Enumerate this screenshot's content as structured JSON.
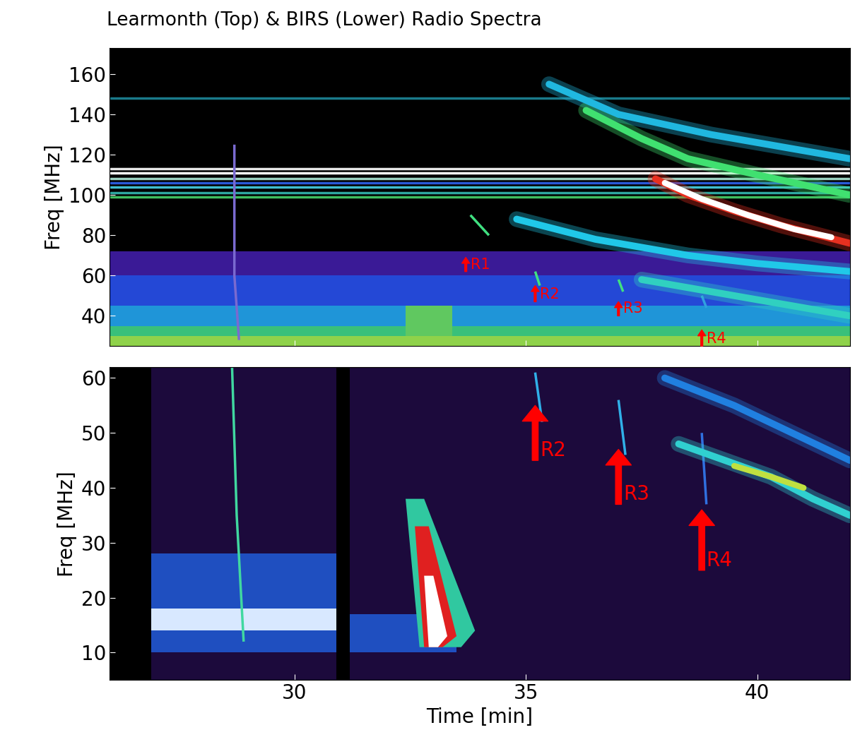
{
  "chart_data": [
    {
      "type": "spectrogram",
      "title": "Learmonth (Top) & BIRS (Lower) Radio Spectra",
      "ylabel": "Freq [MHz]",
      "color": "#000000",
      "xlim": [
        26,
        42
      ],
      "xticks": [
        30,
        35,
        40
      ],
      "ylim": [
        25,
        173
      ],
      "yticks": [
        40,
        60,
        80,
        100,
        120,
        140,
        160
      ],
      "tick_labels": "y",
      "bands": [
        {
          "t": [
            26,
            42
          ],
          "f": [
            25,
            30
          ],
          "color": "#8fd24a"
        },
        {
          "t": [
            26,
            42
          ],
          "f": [
            30,
            35
          ],
          "color": "#39c07a"
        },
        {
          "t": [
            26,
            42
          ],
          "f": [
            35,
            45
          ],
          "color": "#1f95d8"
        },
        {
          "t": [
            26,
            42
          ],
          "f": [
            45,
            60
          ],
          "color": "#2448d6"
        },
        {
          "t": [
            26,
            42
          ],
          "f": [
            60,
            72
          ],
          "color": "#3a1a96"
        }
      ],
      "traces": [
        {
          "t": [
            26,
            42
          ],
          "f": [
            99,
            99
          ],
          "color": "#3fbf60"
        },
        {
          "t": [
            26,
            42
          ],
          "f": [
            101,
            101
          ],
          "color": "#2ea8a0"
        },
        {
          "t": [
            26,
            42
          ],
          "f": [
            104,
            104
          ],
          "color": "#40c0d0"
        },
        {
          "t": [
            26,
            42
          ],
          "f": [
            106,
            106
          ],
          "color": "#2a5ad8"
        },
        {
          "t": [
            26,
            42
          ],
          "f": [
            108,
            108
          ],
          "color": "#9ad0c0"
        },
        {
          "t": [
            26,
            42
          ],
          "f": [
            111,
            111
          ],
          "color": "#ffffff"
        },
        {
          "t": [
            26,
            42
          ],
          "f": [
            113,
            113
          ],
          "color": "#e8e8e8"
        },
        {
          "t": [
            26,
            42
          ],
          "f": [
            148,
            148
          ],
          "color": "#1a7a8a"
        },
        {
          "t": [
            28.7,
            28.7,
            28.8
          ],
          "f": [
            125,
            60,
            28
          ],
          "color": "#7a6ad0"
        },
        {
          "t": [
            33.8,
            34.2
          ],
          "f": [
            90,
            80
          ],
          "color": "#40e080"
        },
        {
          "t": [
            35.2,
            35.3
          ],
          "f": [
            62,
            55
          ],
          "color": "#40e080"
        },
        {
          "t": [
            37.0,
            37.1
          ],
          "f": [
            58,
            52
          ],
          "color": "#40e080"
        },
        {
          "t": [
            38.8,
            38.9
          ],
          "f": [
            50,
            44
          ],
          "color": "#30a0e0"
        }
      ],
      "lanes": [
        {
          "t": [
            35.5,
            37,
            39,
            41,
            42
          ],
          "f": [
            155,
            140,
            130,
            122,
            118
          ],
          "color": "#20b8e0"
        },
        {
          "t": [
            36.3,
            37.5,
            38.5,
            40,
            42
          ],
          "f": [
            142,
            128,
            118,
            110,
            100
          ],
          "color": "#40e070"
        },
        {
          "t": [
            37.8,
            38.5,
            39.5,
            40.5,
            41.5,
            42
          ],
          "f": [
            108,
            100,
            92,
            85,
            79,
            76
          ],
          "color": "#e83020"
        },
        {
          "t": [
            34.8,
            36.5,
            38.5,
            40,
            42
          ],
          "f": [
            88,
            78,
            70,
            66,
            62
          ],
          "color": "#20c8e8"
        },
        {
          "t": [
            37.5,
            39,
            40.5,
            42
          ],
          "f": [
            58,
            52,
            46,
            40
          ],
          "color": "#30d0c0"
        }
      ],
      "cores": [
        {
          "t": [
            38.0,
            38.8,
            39.8,
            40.8,
            41.6
          ],
          "f": [
            106,
            98,
            90,
            83,
            79
          ],
          "color": "#ffffff"
        }
      ],
      "polygons": [
        {
          "t": [
            32.4,
            33.4,
            33.4,
            32.4
          ],
          "f": [
            30,
            30,
            45,
            45
          ],
          "color": "#60c860"
        }
      ],
      "annotations": [
        {
          "text": "R1",
          "t": 33.7,
          "f": [
            62,
            69
          ]
        },
        {
          "text": "R2",
          "t": 35.2,
          "f": [
            47,
            55
          ]
        },
        {
          "text": "R3",
          "t": 37.0,
          "f": [
            40,
            47
          ]
        },
        {
          "text": "R4",
          "t": 38.8,
          "f": [
            25,
            33
          ]
        }
      ]
    },
    {
      "type": "spectrogram",
      "ylabel": "Freq [MHz]",
      "xlabel": "Time [min]",
      "color": "#1c0a3c",
      "xlim": [
        26,
        42
      ],
      "xticks": [
        30,
        35,
        40
      ],
      "ylim": [
        5,
        62
      ],
      "yticks": [
        10,
        20,
        30,
        40,
        50,
        60
      ],
      "bands": [
        {
          "t": [
            26,
            26.9
          ],
          "f": [
            5,
            62
          ],
          "color": "#000000"
        },
        {
          "t": [
            26.9,
            30.9
          ],
          "f": [
            10,
            28
          ],
          "color": "#1f4fc0"
        },
        {
          "t": [
            26.9,
            30.9
          ],
          "f": [
            14,
            18
          ],
          "color": "#d8e8ff"
        },
        {
          "t": [
            30.9,
            31.2
          ],
          "f": [
            5,
            62
          ],
          "color": "#000000"
        },
        {
          "t": [
            31.2,
            33.5
          ],
          "f": [
            10,
            17
          ],
          "color": "#1f4fc0"
        }
      ],
      "traces": [
        {
          "t": [
            28.65,
            28.75,
            28.9
          ],
          "f": [
            62,
            35,
            12
          ],
          "color": "#40d8a0"
        },
        {
          "t": [
            35.2,
            35.35
          ],
          "f": [
            61,
            52
          ],
          "color": "#30b0e8"
        },
        {
          "t": [
            37.0,
            37.15
          ],
          "f": [
            56,
            46
          ],
          "color": "#30b0e8"
        },
        {
          "t": [
            38.8,
            38.9
          ],
          "f": [
            50,
            37
          ],
          "color": "#3070e0"
        }
      ],
      "lanes": [
        {
          "t": [
            38,
            39.5,
            41,
            42
          ],
          "f": [
            60,
            55,
            49,
            45
          ],
          "color": "#2080e0"
        },
        {
          "t": [
            38.3,
            39.3,
            40.3,
            41.2,
            42
          ],
          "f": [
            48,
            45,
            42,
            38,
            35
          ],
          "color": "#30d0d0"
        }
      ],
      "cores": [
        {
          "t": [
            39.5,
            40.3,
            41.0
          ],
          "f": [
            44,
            42,
            40
          ],
          "color": "#c0e040"
        }
      ],
      "polygons": [
        {
          "t": [
            32.4,
            32.8,
            33.9,
            33.6,
            32.7
          ],
          "f": [
            38,
            38,
            14,
            11,
            11
          ],
          "color": "#30c8a0"
        },
        {
          "t": [
            32.6,
            32.9,
            33.5,
            33.2,
            32.8
          ],
          "f": [
            33,
            33,
            13,
            11,
            11
          ],
          "color": "#e02020"
        },
        {
          "t": [
            32.8,
            33.0,
            33.3,
            33.1,
            32.9
          ],
          "f": [
            24,
            24,
            13,
            11,
            11
          ],
          "color": "#ffffff"
        }
      ],
      "annotations": [
        {
          "text": "R2",
          "t": 35.2,
          "f": [
            45,
            55
          ]
        },
        {
          "text": "R3",
          "t": 37.0,
          "f": [
            37,
            47
          ]
        },
        {
          "text": "R4",
          "t": 38.8,
          "f": [
            25,
            36
          ]
        }
      ]
    }
  ]
}
